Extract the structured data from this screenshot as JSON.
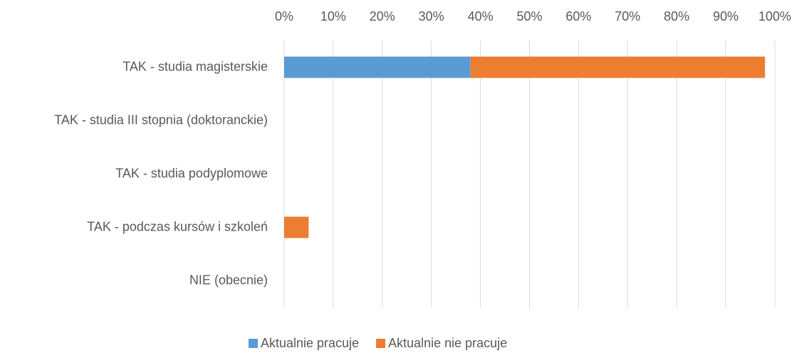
{
  "chart_data": {
    "type": "stacked-barh",
    "categories": [
      "TAK - studia magisterskie",
      "TAK - studia III stopnia (doktoranckie)",
      "TAK - studia podyplomowe",
      "TAK - podczas kursów i szkoleń",
      "NIE (obecnie)"
    ],
    "series": [
      {
        "name": "Aktualnie pracuje",
        "color": "#5b9bd5",
        "values": [
          38,
          0,
          0,
          0,
          0
        ]
      },
      {
        "name": "Aktualnie nie pracuje",
        "color": "#ed7d31",
        "values": [
          60,
          0,
          0,
          5,
          0
        ]
      }
    ],
    "xlim": [
      0,
      100
    ],
    "xticks": [
      {
        "value": 0,
        "label": "0%"
      },
      {
        "value": 10,
        "label": "10%"
      },
      {
        "value": 20,
        "label": "20%"
      },
      {
        "value": 30,
        "label": "30%"
      },
      {
        "value": 40,
        "label": "40%"
      },
      {
        "value": 50,
        "label": "50%"
      },
      {
        "value": 60,
        "label": "60%"
      },
      {
        "value": 70,
        "label": "70%"
      },
      {
        "value": 80,
        "label": "80%"
      },
      {
        "value": 90,
        "label": "90%"
      },
      {
        "value": 100,
        "label": "100%"
      }
    ],
    "grid": true,
    "legend": "bottom"
  }
}
